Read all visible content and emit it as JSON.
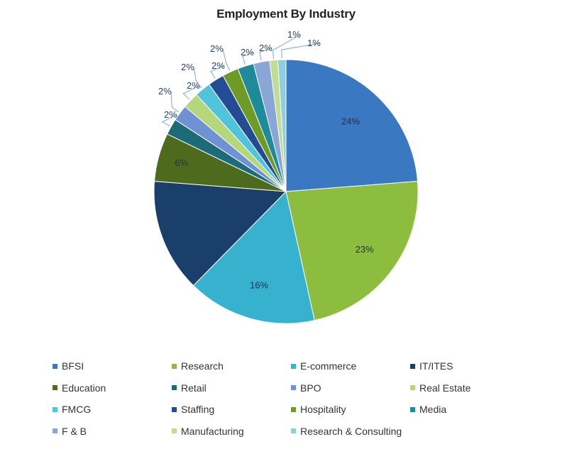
{
  "chart_data": {
    "type": "pie",
    "title": "Employment By Industry",
    "legend_position": "bottom",
    "slices": [
      {
        "label": "BFSI",
        "value": 24,
        "value_label": "24%",
        "color": "#3b78c2"
      },
      {
        "label": "Research",
        "value": 23,
        "value_label": "23%",
        "color": "#8dbd3e"
      },
      {
        "label": "E-commerce",
        "value": 16,
        "value_label": "16%",
        "color": "#36b2cf"
      },
      {
        "label": "IT/ITES",
        "value": 14,
        "value_label": "",
        "color": "#1b3f6b"
      },
      {
        "label": "Education",
        "value": 6,
        "value_label": "6%",
        "color": "#4e6b1d"
      },
      {
        "label": "Retail",
        "value": 2,
        "value_label": "2%",
        "color": "#1b6b78"
      },
      {
        "label": "BPO",
        "value": 2,
        "value_label": "2%",
        "color": "#6f92d4"
      },
      {
        "label": "Real Estate",
        "value": 2,
        "value_label": "2%",
        "color": "#b5d67a"
      },
      {
        "label": "FMCG",
        "value": 2,
        "value_label": "2%",
        "color": "#4fc4dc"
      },
      {
        "label": "Staffing",
        "value": 2,
        "value_label": "2%",
        "color": "#234c93"
      },
      {
        "label": "Hospitality",
        "value": 2,
        "value_label": "2%",
        "color": "#6e9a26"
      },
      {
        "label": "Media",
        "value": 2,
        "value_label": "2%",
        "color": "#1f8a9a"
      },
      {
        "label": "F & B",
        "value": 2,
        "value_label": "2%",
        "color": "#8aa6d6"
      },
      {
        "label": "Manufacturing",
        "value": 1,
        "value_label": "1%",
        "color": "#c3dc94"
      },
      {
        "label": "Research & Consulting",
        "value": 1,
        "value_label": "1%",
        "color": "#8ccfe0"
      }
    ]
  }
}
